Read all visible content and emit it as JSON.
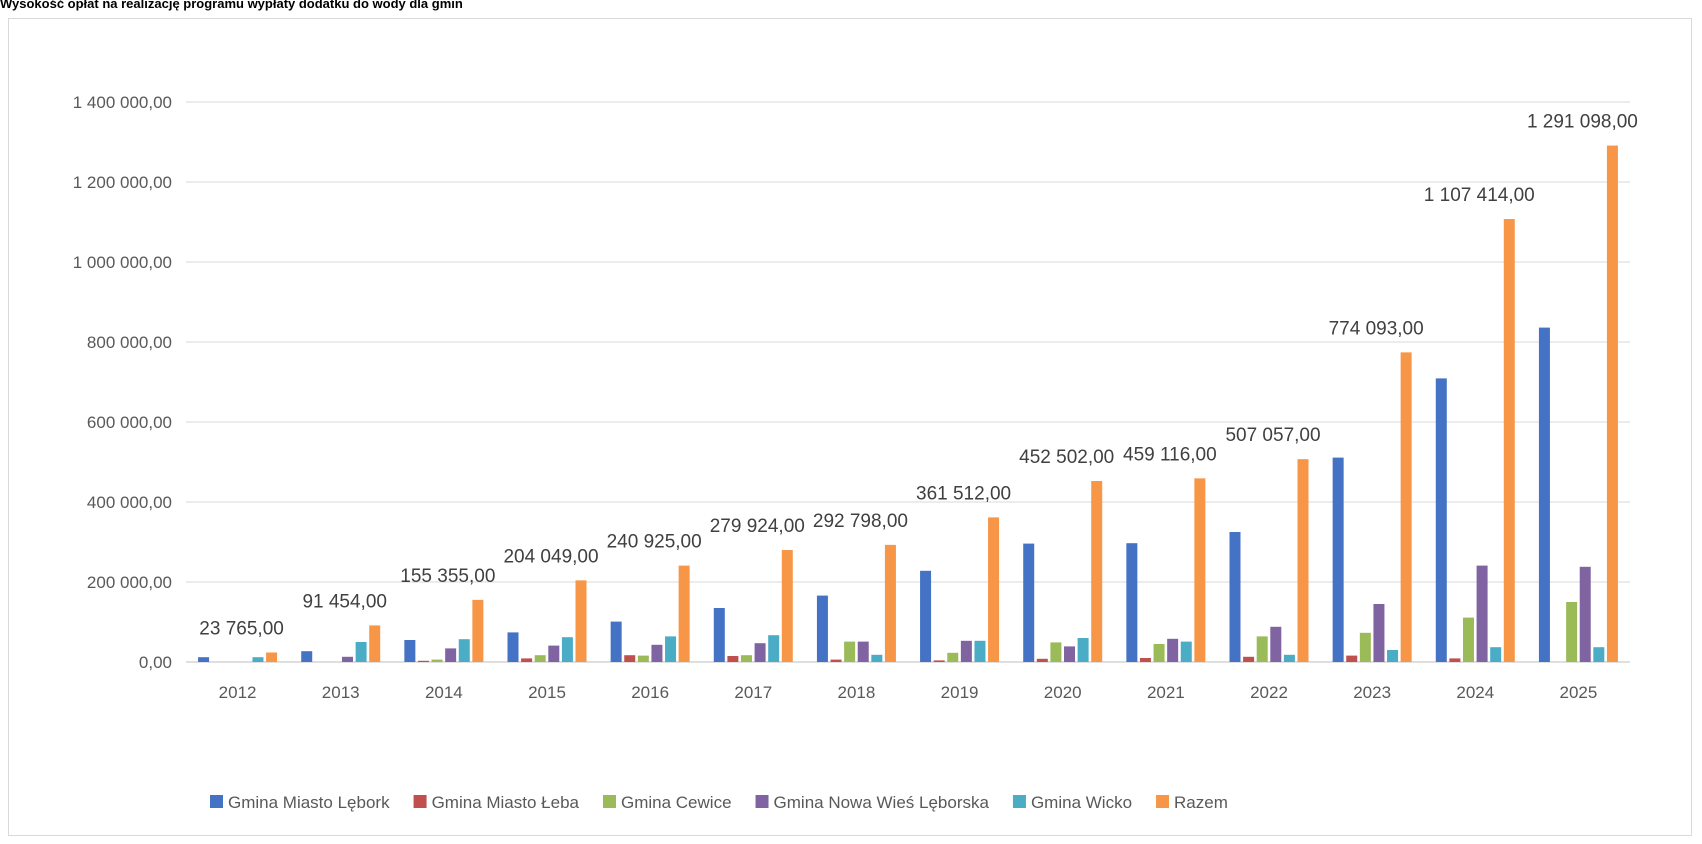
{
  "title_text": "Wysokość opłat na realizację programu wypłaty dodatku do wody dla gmin",
  "chart_data": {
    "type": "bar",
    "title": "Wysokość opłat na realizację programu wypłaty dodatku do wody dla gmin",
    "categories": [
      "2012",
      "2013",
      "2014",
      "2015",
      "2016",
      "2017",
      "2018",
      "2019",
      "2020",
      "2021",
      "2022",
      "2023",
      "2024",
      "2025"
    ],
    "ylim": [
      0,
      1400000
    ],
    "yticks": [
      0,
      200000,
      400000,
      600000,
      800000,
      1000000,
      1200000,
      1400000
    ],
    "ytick_labels": [
      "0,00",
      "200 000,00",
      "400 000,00",
      "600 000,00",
      "800 000,00",
      "1 000 000,00",
      "1 200 000,00",
      "1 400 000,00"
    ],
    "grid": true,
    "legend_position": "bottom",
    "series": [
      {
        "name": "Gmina Miasto Lębork",
        "color": "#4472c4",
        "values": [
          12000,
          27000,
          55000,
          74000,
          101000,
          135000,
          166000,
          228000,
          296000,
          297000,
          325000,
          511000,
          709000,
          836000
        ]
      },
      {
        "name": "Gmina Miasto Łeba",
        "color": "#c0504d",
        "values": [
          0,
          0,
          3000,
          9000,
          17000,
          15000,
          6000,
          4000,
          8000,
          10000,
          13000,
          16000,
          9000,
          0
        ]
      },
      {
        "name": "Gmina Cewice",
        "color": "#9bbb59",
        "values": [
          0,
          0,
          6000,
          17000,
          16000,
          17000,
          51000,
          23000,
          49000,
          45000,
          64000,
          73000,
          111000,
          150000
        ]
      },
      {
        "name": "Gmina Nowa Wieś Lęborska",
        "color": "#8064a2",
        "values": [
          0,
          13000,
          34000,
          41000,
          43000,
          47000,
          51000,
          53000,
          39000,
          58000,
          88000,
          145000,
          241000,
          238000
        ]
      },
      {
        "name": "Gmina Wicko",
        "color": "#4bacc6",
        "values": [
          12000,
          50000,
          57000,
          62000,
          64000,
          67000,
          18000,
          53000,
          60000,
          51000,
          18000,
          30000,
          37000,
          37000
        ]
      },
      {
        "name": "Razem",
        "color": "#f79646",
        "values": [
          23765,
          91454,
          155355,
          204049,
          240925,
          279924,
          292798,
          361512,
          452502,
          459116,
          507057,
          774093,
          1107414,
          1291098
        ]
      }
    ],
    "data_labels": [
      "23 765,00",
      "91 454,00",
      "155 355,00",
      "204 049,00",
      "240 925,00",
      "279 924,00",
      "292 798,00",
      "361 512,00",
      "452 502,00",
      "459 116,00",
      "507 057,00",
      "774 093,00",
      "1 107 414,00",
      "1 291 098,00"
    ]
  }
}
